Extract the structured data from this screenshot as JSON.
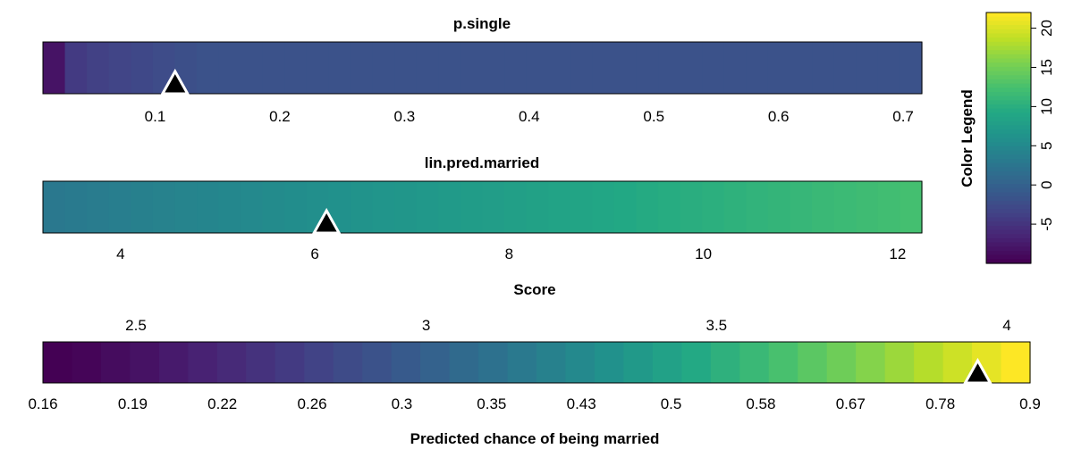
{
  "chart_data": [
    {
      "type": "heatmap",
      "title": "p.single",
      "xlim": [
        0.01,
        0.715
      ],
      "ticks": [
        0.1,
        0.2,
        0.3,
        0.4,
        0.5,
        0.6,
        0.7
      ],
      "tick_labels": [
        "0.1",
        "0.2",
        "0.3",
        "0.4",
        "0.5",
        "0.6",
        "0.7"
      ],
      "marker_value": 0.116
    },
    {
      "type": "heatmap",
      "title": "lin.pred.married",
      "xlim": [
        3.2,
        12.25
      ],
      "ticks": [
        4,
        6,
        8,
        10,
        12
      ],
      "tick_labels": [
        "4",
        "6",
        "8",
        "10",
        "12"
      ],
      "marker_value": 6.12
    },
    {
      "type": "heatmap",
      "title": "Score",
      "xlabel": "Predicted chance of being married",
      "top_ticks": [
        2.5,
        3,
        3.5,
        4
      ],
      "top_tick_labels": [
        "2.5",
        "3",
        "3.5",
        "4"
      ],
      "bottom_tick_labels": [
        "0.16",
        "0.19",
        "0.22",
        "0.26",
        "0.3",
        "0.35",
        "0.43",
        "0.5",
        "0.58",
        "0.67",
        "0.78",
        "0.9"
      ],
      "marker_value": 0.83
    },
    {
      "type": "heatmap",
      "title": "Color Legend",
      "ylim": [
        -10,
        22
      ],
      "ticks": [
        -5,
        0,
        5,
        10,
        15,
        20
      ],
      "tick_labels": [
        "-5",
        "0",
        "5",
        "10",
        "15",
        "20"
      ]
    }
  ]
}
